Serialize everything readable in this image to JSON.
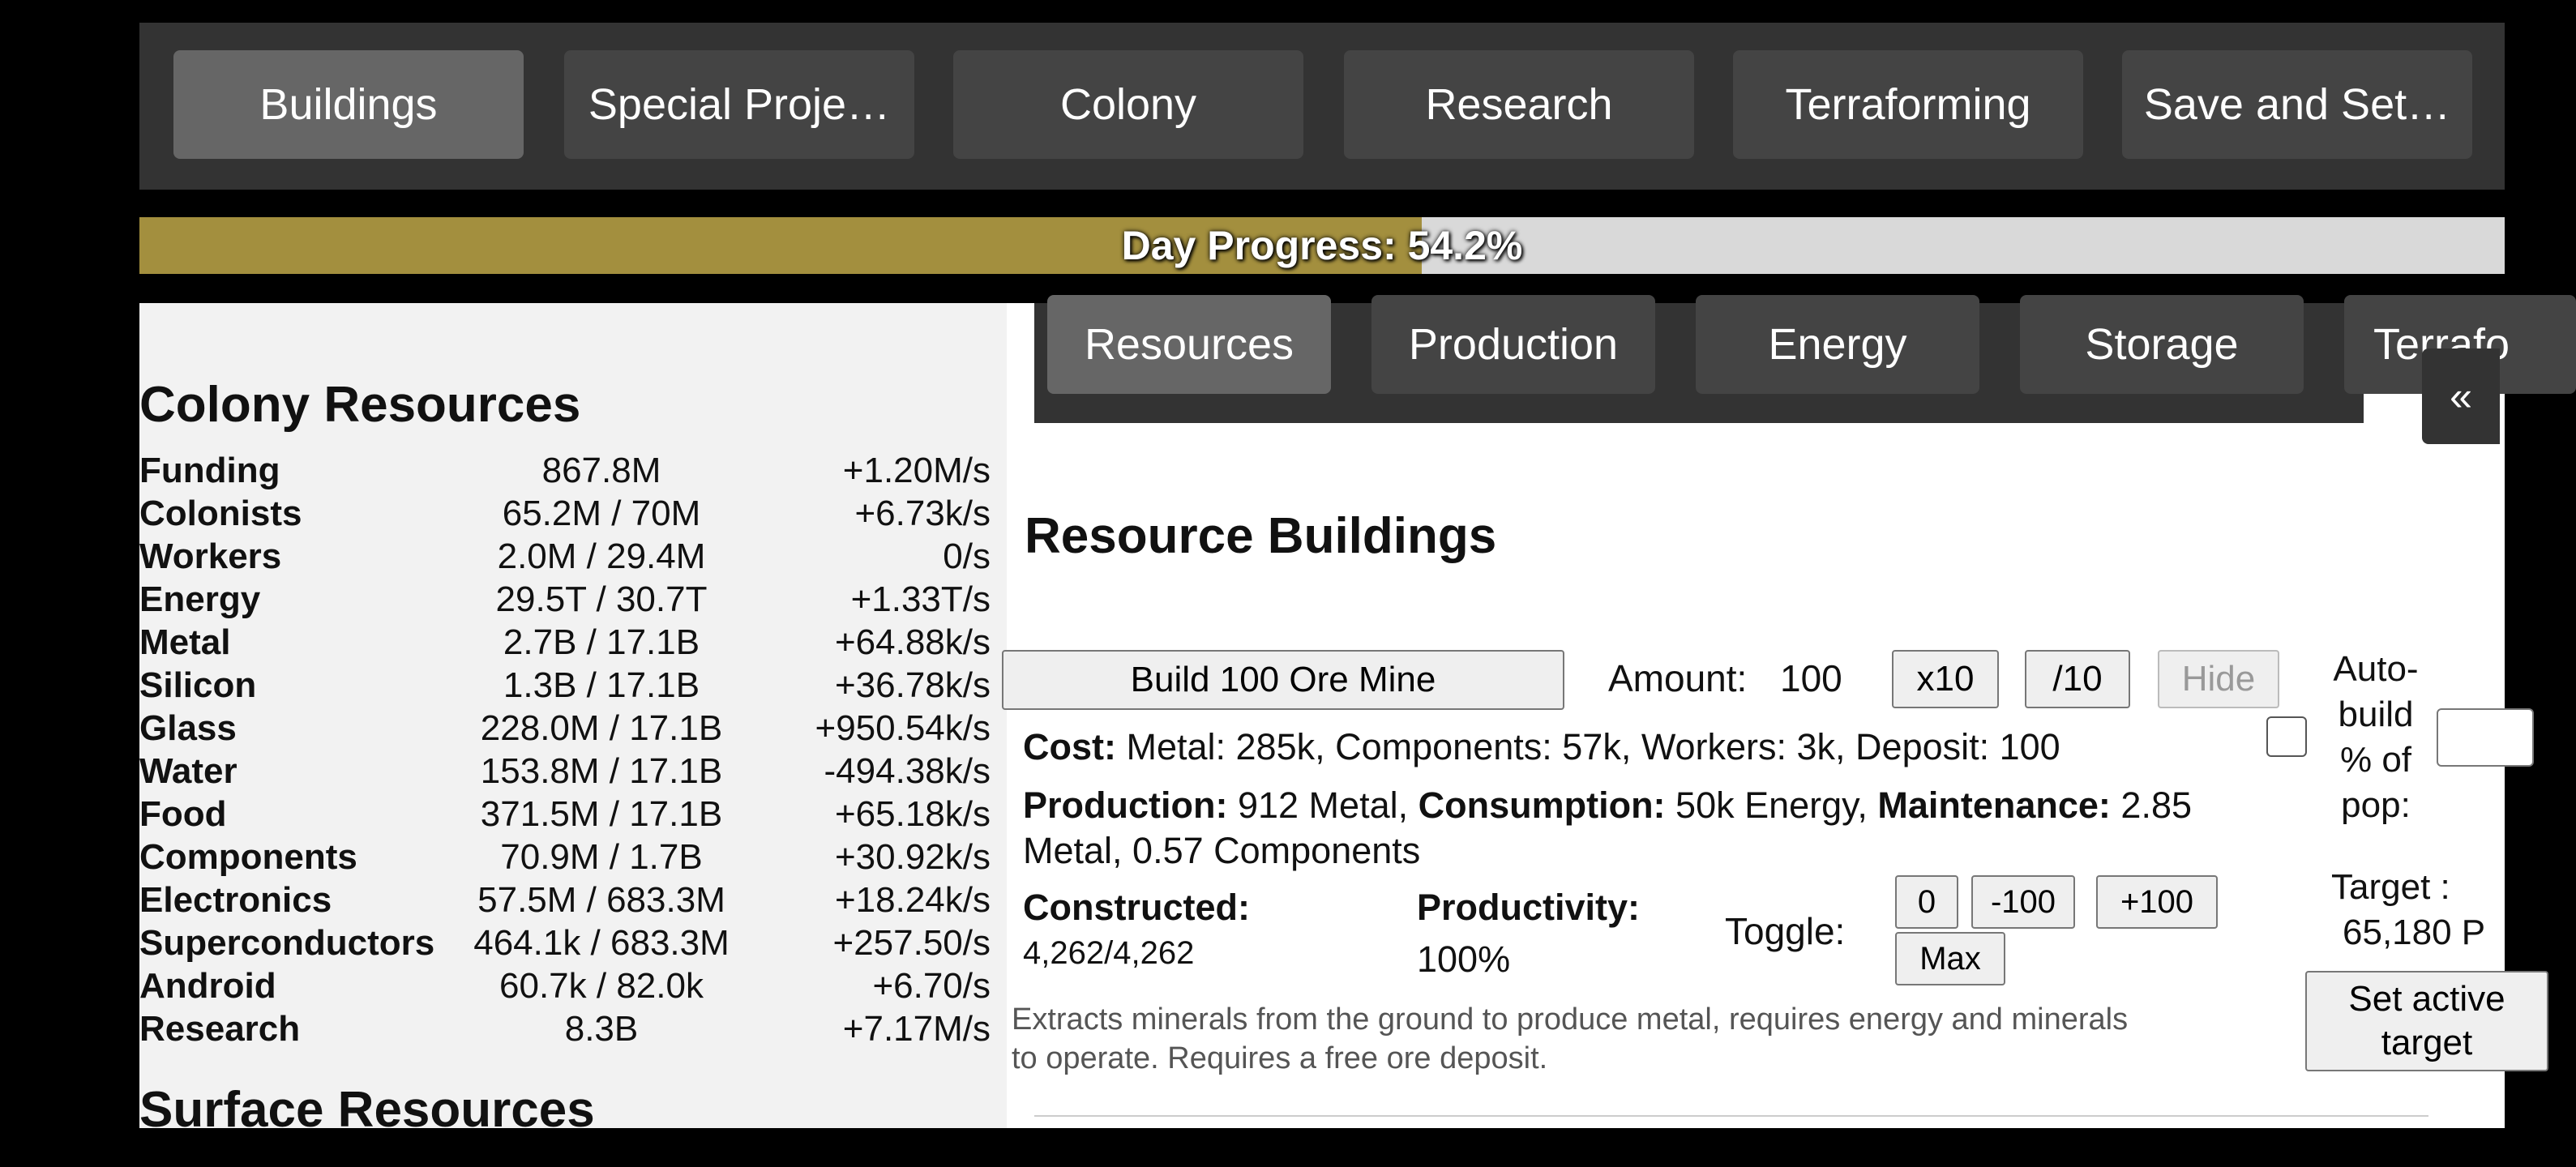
{
  "top_nav": {
    "tabs": [
      {
        "label": "Buildings",
        "active": true
      },
      {
        "label": "Special Proje…",
        "active": false
      },
      {
        "label": "Colony",
        "active": false
      },
      {
        "label": "Research",
        "active": false
      },
      {
        "label": "Terraforming",
        "active": false
      },
      {
        "label": "Save and Set…",
        "active": false
      }
    ]
  },
  "day_progress": {
    "label": "Day Progress: 54.2%",
    "percent": 54.2,
    "fill_color": "#a38f3e"
  },
  "sidebar": {
    "title": "Colony Resources",
    "resources": [
      {
        "name": "Funding",
        "amount": "867.8M",
        "rate": "+1.20M/s"
      },
      {
        "name": "Colonists",
        "amount": "65.2M / 70M",
        "rate": "+6.73k/s"
      },
      {
        "name": "Workers",
        "amount": "2.0M / 29.4M",
        "rate": "0/s"
      },
      {
        "name": "Energy",
        "amount": "29.5T / 30.7T",
        "rate": "+1.33T/s"
      },
      {
        "name": "Metal",
        "amount": "2.7B / 17.1B",
        "rate": "+64.88k/s"
      },
      {
        "name": "Silicon",
        "amount": "1.3B / 17.1B",
        "rate": "+36.78k/s"
      },
      {
        "name": "Glass",
        "amount": "228.0M / 17.1B",
        "rate": "+950.54k/s"
      },
      {
        "name": "Water",
        "amount": "153.8M / 17.1B",
        "rate": "-494.38k/s"
      },
      {
        "name": "Food",
        "amount": "371.5M / 17.1B",
        "rate": "+65.18k/s"
      },
      {
        "name": "Components",
        "amount": "70.9M / 1.7B",
        "rate": "+30.92k/s"
      },
      {
        "name": "Electronics",
        "amount": "57.5M / 683.3M",
        "rate": "+18.24k/s"
      },
      {
        "name": "Superconductors",
        "amount": "464.1k / 683.3M",
        "rate": "+257.50/s"
      },
      {
        "name": "Android",
        "amount": "60.7k / 82.0k",
        "rate": "+6.70/s"
      },
      {
        "name": "Research",
        "amount": "8.3B",
        "rate": "+7.17M/s"
      }
    ],
    "surface_title": "Surface Resources"
  },
  "sub_nav": {
    "tabs": [
      {
        "label": "Resources",
        "active": true
      },
      {
        "label": "Production",
        "active": false
      },
      {
        "label": "Energy",
        "active": false
      },
      {
        "label": "Storage",
        "active": false
      },
      {
        "label": "Terrafo",
        "active": false
      }
    ],
    "collapse_label": "«"
  },
  "section": {
    "title": "Resource Buildings"
  },
  "building": {
    "build_label": "Build 100 Ore Mine",
    "amount_label": "Amount:",
    "amount_value": "100",
    "x10_label": "x10",
    "div10_label": "/10",
    "hide_label": "Hide",
    "cost_label": "Cost:",
    "cost_text": " Metal: 285k, Components: 57k, Workers: 3k, Deposit: 100",
    "production_label": "Production:",
    "production_text": " 912 Metal, ",
    "consumption_label": "Consumption:",
    "consumption_text": " 50k Energy, ",
    "maintenance_label": "Maintenance:",
    "maintenance_text": " 2.85",
    "maintenance_text2": "Metal, 0.57 Components",
    "constructed_label": "Constructed:",
    "constructed_value": "4,262/4,262",
    "productivity_label": "Productivity:",
    "productivity_value": "100%",
    "toggle_label": "Toggle:",
    "toggle_buttons": [
      "0",
      "-100",
      "+100",
      "Max"
    ],
    "description_line1": "Extracts minerals from the ground to produce metal, requires energy and minerals",
    "description_line2": "to operate. Requires a free ore deposit.",
    "autobuild_label": "Auto-build % of pop:",
    "autobuild_checked": false,
    "target_label": "Target :",
    "target_value": "65,180  P",
    "set_target_label": "Set active target"
  }
}
